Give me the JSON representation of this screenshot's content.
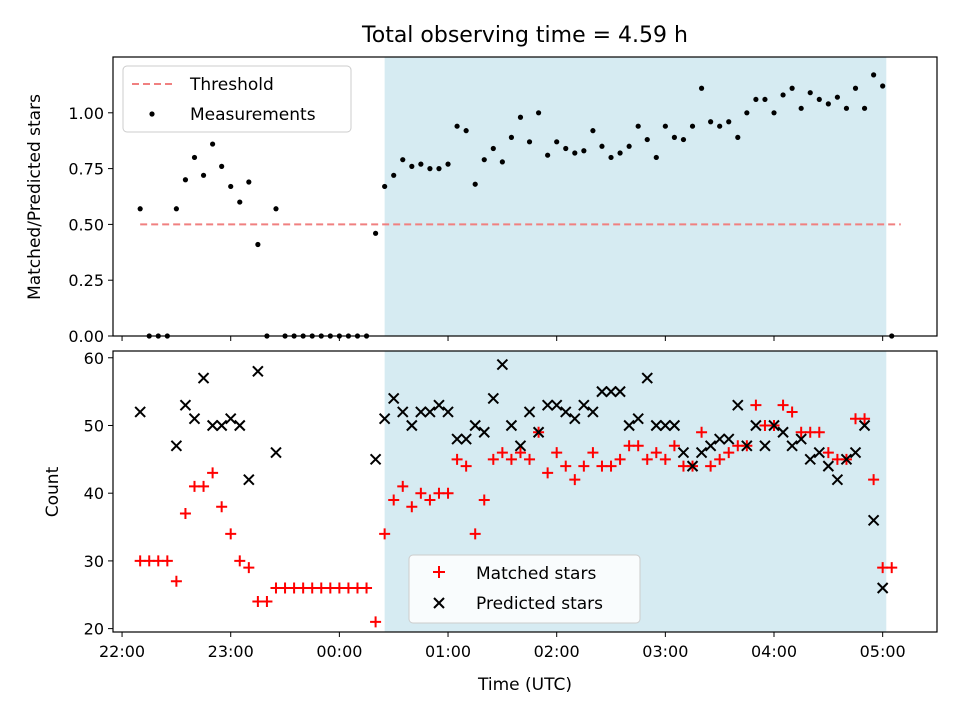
{
  "figure": {
    "title": "Total observing time = 4.59 h",
    "xlabel": "Time (UTC)"
  },
  "chart_data": [
    {
      "type": "scatter",
      "ylabel": "Matched/Predicted stars",
      "x_range": [
        "21:55",
        "05:30"
      ],
      "ylim": [
        0,
        1.25
      ],
      "yticks": [
        "0.00",
        "0.25",
        "0.50",
        "0.75",
        "1.00"
      ],
      "shaded_span": [
        "00:25",
        "05:02"
      ],
      "legend": {
        "placement": "upper left",
        "entries": [
          "Threshold",
          "Measurements"
        ]
      },
      "series": [
        {
          "name": "Threshold",
          "style": "dashed-line",
          "color": "#f08080",
          "x": [
            "22:10",
            "05:10"
          ],
          "y": [
            0.5,
            0.5
          ]
        },
        {
          "name": "Measurements",
          "style": "dot",
          "color": "#000000",
          "x": [
            "22:10",
            "22:15",
            "22:20",
            "22:25",
            "22:30",
            "22:35",
            "22:40",
            "22:45",
            "22:50",
            "22:55",
            "23:00",
            "23:05",
            "23:10",
            "23:15",
            "23:20",
            "23:25",
            "23:30",
            "23:35",
            "23:40",
            "23:45",
            "23:50",
            "23:55",
            "00:00",
            "00:05",
            "00:10",
            "00:15",
            "00:20",
            "00:25",
            "00:30",
            "00:35",
            "00:40",
            "00:45",
            "00:50",
            "00:55",
            "01:00",
            "01:05",
            "01:10",
            "01:15",
            "01:20",
            "01:25",
            "01:30",
            "01:35",
            "01:40",
            "01:45",
            "01:50",
            "01:55",
            "02:00",
            "02:05",
            "02:10",
            "02:15",
            "02:20",
            "02:25",
            "02:30",
            "02:35",
            "02:40",
            "02:45",
            "02:50",
            "02:55",
            "03:00",
            "03:05",
            "03:10",
            "03:15",
            "03:20",
            "03:25",
            "03:30",
            "03:35",
            "03:40",
            "03:45",
            "03:50",
            "03:55",
            "04:00",
            "04:05",
            "04:10",
            "04:15",
            "04:20",
            "04:25",
            "04:30",
            "04:35",
            "04:40",
            "04:45",
            "04:50",
            "04:55",
            "05:00",
            "05:05"
          ],
          "y": [
            0.57,
            0.0,
            0.0,
            0.0,
            0.57,
            0.7,
            0.8,
            0.72,
            0.86,
            0.76,
            0.67,
            0.6,
            0.69,
            0.41,
            0.0,
            0.57,
            0.0,
            0.0,
            0.0,
            0.0,
            0.0,
            0.0,
            0.0,
            0.0,
            0.0,
            0.0,
            0.46,
            0.67,
            0.72,
            0.79,
            0.76,
            0.77,
            0.75,
            0.75,
            0.77,
            0.94,
            0.92,
            0.68,
            0.79,
            0.84,
            0.78,
            0.89,
            0.98,
            0.87,
            1.0,
            0.81,
            0.87,
            0.84,
            0.82,
            0.83,
            0.92,
            0.85,
            0.8,
            0.82,
            0.85,
            0.94,
            0.88,
            0.8,
            0.94,
            0.89,
            0.88,
            0.94,
            1.11,
            0.96,
            0.94,
            0.96,
            0.89,
            1.0,
            1.06,
            1.06,
            1.0,
            1.08,
            1.11,
            1.02,
            1.09,
            1.06,
            1.04,
            1.07,
            1.02,
            1.11,
            1.02,
            1.17,
            1.12,
            0.0
          ]
        }
      ]
    },
    {
      "type": "scatter",
      "ylabel": "Count",
      "x_range": [
        "21:55",
        "05:30"
      ],
      "ylim": [
        19.5,
        61
      ],
      "yticks": [
        "20",
        "30",
        "40",
        "50",
        "60"
      ],
      "xticks": [
        "22:00",
        "23:00",
        "00:00",
        "01:00",
        "02:00",
        "03:00",
        "04:00",
        "05:00"
      ],
      "shaded_span": [
        "00:25",
        "05:02"
      ],
      "legend": {
        "placement": "lower center",
        "entries": [
          "Matched stars",
          "Predicted stars"
        ]
      },
      "series": [
        {
          "name": "Matched stars",
          "style": "plus",
          "color": "#ff0000",
          "x": [
            "22:10",
            "22:15",
            "22:20",
            "22:25",
            "22:30",
            "22:35",
            "22:40",
            "22:45",
            "22:50",
            "22:55",
            "23:00",
            "23:05",
            "23:10",
            "23:15",
            "23:20",
            "23:25",
            "23:30",
            "23:35",
            "23:40",
            "23:45",
            "23:50",
            "23:55",
            "00:00",
            "00:05",
            "00:10",
            "00:15",
            "00:20",
            "00:25",
            "00:30",
            "00:35",
            "00:40",
            "00:45",
            "00:50",
            "00:55",
            "01:00",
            "01:05",
            "01:10",
            "01:15",
            "01:20",
            "01:25",
            "01:30",
            "01:35",
            "01:40",
            "01:45",
            "01:50",
            "01:55",
            "02:00",
            "02:05",
            "02:10",
            "02:15",
            "02:20",
            "02:25",
            "02:30",
            "02:35",
            "02:40",
            "02:45",
            "02:50",
            "02:55",
            "03:00",
            "03:05",
            "03:10",
            "03:15",
            "03:20",
            "03:25",
            "03:30",
            "03:35",
            "03:40",
            "03:45",
            "03:50",
            "03:55",
            "04:00",
            "04:05",
            "04:10",
            "04:15",
            "04:20",
            "04:25",
            "04:30",
            "04:35",
            "04:40",
            "04:45",
            "04:50",
            "04:55",
            "05:00",
            "05:05"
          ],
          "y": [
            30,
            30,
            30,
            30,
            27,
            37,
            41,
            41,
            43,
            38,
            34,
            30,
            29,
            24,
            24,
            26,
            26,
            26,
            26,
            26,
            26,
            26,
            26,
            26,
            26,
            26,
            21,
            34,
            39,
            41,
            38,
            40,
            39,
            40,
            40,
            45,
            44,
            34,
            39,
            45,
            46,
            45,
            46,
            45,
            49,
            43,
            46,
            44,
            42,
            44,
            46,
            44,
            44,
            45,
            47,
            47,
            45,
            46,
            45,
            47,
            44,
            44,
            49,
            44,
            45,
            46,
            47,
            47,
            53,
            50,
            50,
            53,
            52,
            49,
            49,
            49,
            46,
            45,
            45,
            51,
            51,
            42,
            29,
            29
          ]
        },
        {
          "name": "Predicted stars",
          "style": "x",
          "color": "#000000",
          "x": [
            "22:10",
            "22:30",
            "22:35",
            "22:40",
            "22:45",
            "22:50",
            "22:55",
            "23:00",
            "23:05",
            "23:10",
            "23:15",
            "23:25",
            "00:20",
            "00:25",
            "00:30",
            "00:35",
            "00:40",
            "00:45",
            "00:50",
            "00:55",
            "01:00",
            "01:05",
            "01:10",
            "01:15",
            "01:20",
            "01:25",
            "01:30",
            "01:35",
            "01:40",
            "01:45",
            "01:50",
            "01:55",
            "02:00",
            "02:05",
            "02:10",
            "02:15",
            "02:20",
            "02:25",
            "02:30",
            "02:35",
            "02:40",
            "02:45",
            "02:50",
            "02:55",
            "03:00",
            "03:05",
            "03:10",
            "03:15",
            "03:20",
            "03:25",
            "03:30",
            "03:35",
            "03:40",
            "03:45",
            "03:50",
            "03:55",
            "04:00",
            "04:05",
            "04:10",
            "04:15",
            "04:20",
            "04:25",
            "04:30",
            "04:35",
            "04:40",
            "04:45",
            "04:50",
            "04:55",
            "05:00"
          ],
          "y": [
            52,
            47,
            53,
            51,
            57,
            50,
            50,
            51,
            50,
            42,
            58,
            46,
            45,
            51,
            54,
            52,
            50,
            52,
            52,
            53,
            52,
            48,
            48,
            50,
            49,
            54,
            59,
            50,
            47,
            52,
            49,
            53,
            53,
            52,
            51,
            53,
            52,
            55,
            55,
            55,
            50,
            51,
            57,
            50,
            50,
            50,
            46,
            44,
            46,
            47,
            48,
            48,
            53,
            47,
            50,
            47,
            50,
            49,
            47,
            48,
            45,
            46,
            44,
            42,
            45,
            46,
            50,
            36,
            26
          ]
        }
      ]
    }
  ]
}
